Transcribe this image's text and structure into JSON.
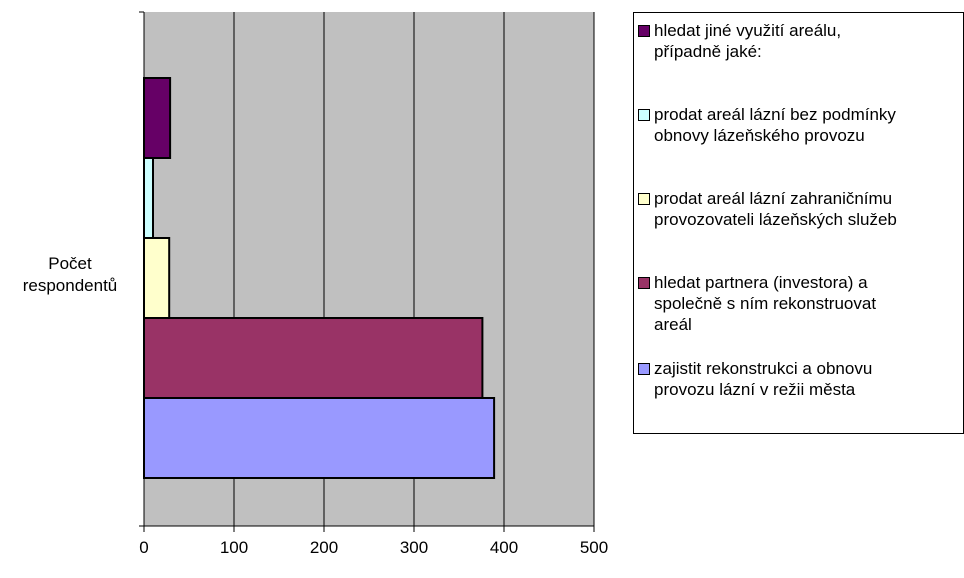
{
  "chart_data": {
    "type": "bar",
    "orientation": "horizontal",
    "category": "Počet\nrespondentů",
    "series": [
      {
        "name": "zajistit rekonstrukci a obnovu\nprovozu lázní v režii města",
        "value": 389,
        "color": "#9999FF"
      },
      {
        "name": "hledat partnera (investora) a\nspolečně s ním rekonstruovat\nareál",
        "value": 376,
        "color": "#993366"
      },
      {
        "name": "prodat areál lázní zahraničnímu\nprovozovateli lázeňských služeb",
        "value": 28,
        "color": "#FFFFCC"
      },
      {
        "name": "prodat areál lázní bez podmínky\nobnovy lázeňského provozu",
        "value": 10,
        "color": "#CCFFFF"
      },
      {
        "name": "hledat jiné využití areálu,\npřípadně jaké:",
        "value": 29,
        "color": "#660066"
      }
    ],
    "xlim": [
      0,
      500
    ],
    "xticks": [
      "0",
      "100",
      "200",
      "300",
      "400",
      "500"
    ],
    "grid": true,
    "plot_background": "#C0C0C0",
    "legend_position": "right"
  }
}
